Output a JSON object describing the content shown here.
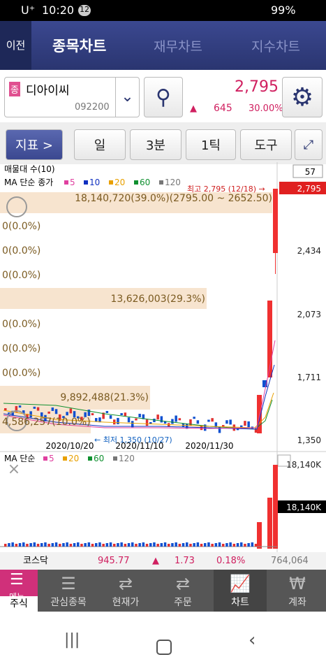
{
  "status_bar": {
    "carrier": "U⁺",
    "time": "10:20",
    "notifications": "12",
    "battery": "99%"
  },
  "tabs": {
    "back": "이전",
    "items": [
      "종목차트",
      "재무차트",
      "지수차트"
    ]
  },
  "stock": {
    "badge": "종",
    "name": "디아이씨",
    "code": "092200",
    "price": "2,795",
    "change": "645",
    "change_rate": "30.00%"
  },
  "toolbar": {
    "indicator": "지표 >",
    "period": "일",
    "interval": "3분",
    "tick": "1틱",
    "tools": "도구"
  },
  "chart": {
    "title": "매물대 수(10)",
    "count": "57",
    "ma_label": "MA 단순 종가",
    "ma_periods": [
      "5",
      "10",
      "20",
      "60",
      "120"
    ],
    "profile_labels": [
      "18,140,720(39.0%)(2795.00 ~ 2652.50)",
      "0(0.0%)",
      "0(0.0%)",
      "0(0.0%)",
      "13,626,003(29.3%)",
      "0(0.0%)",
      "0(0.0%)",
      "0(0.0%)",
      "9,892,488(21.3%)",
      "4,586,257(10.0%)"
    ],
    "price_axis": [
      "2,795",
      "2,434",
      "2,073",
      "1,711",
      "1,350"
    ],
    "high_label": "최고 2,795 (12/18) →",
    "low_label": "← 최저 1,350 (10/27)",
    "dates": [
      "2020/10/20",
      "2020/11/10",
      "2020/11/30"
    ]
  },
  "volume": {
    "ma_label": "MA 단순",
    "ma_periods": [
      "5",
      "20",
      "60",
      "120"
    ],
    "axis_labels": [
      "18,140K",
      "18,140K"
    ]
  },
  "index_bar": {
    "name": "코스닥",
    "value": "945.77",
    "change": "1.73",
    "rate": "0.18%",
    "volume": "764,064"
  },
  "nav": {
    "menu": "메뉴",
    "items": [
      "주식",
      "관심종목",
      "현재가",
      "주문",
      "차트",
      "계좌"
    ]
  }
}
